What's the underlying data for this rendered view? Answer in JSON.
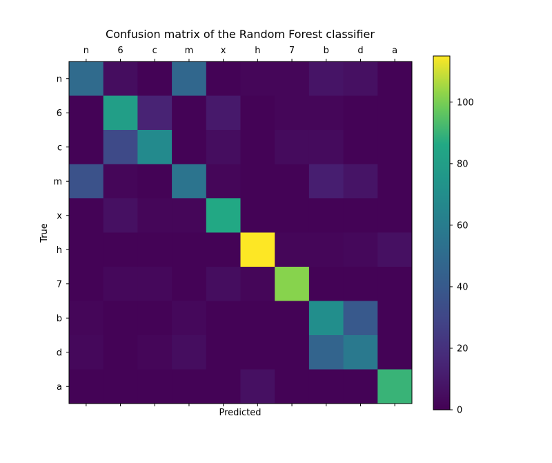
{
  "chart_data": {
    "type": "heatmap",
    "title": "Confusion matrix of the Random Forest classifier",
    "xlabel": "Predicted",
    "ylabel": "True",
    "x_categories": [
      "n",
      "6",
      "c",
      "m",
      "x",
      "h",
      "7",
      "b",
      "d",
      "a"
    ],
    "y_categories": [
      "n",
      "6",
      "c",
      "m",
      "x",
      "h",
      "7",
      "b",
      "d",
      "a"
    ],
    "values": [
      [
        50,
        5,
        1,
        48,
        1,
        2,
        2,
        8,
        6,
        1
      ],
      [
        1,
        80,
        14,
        1,
        10,
        1,
        2,
        2,
        1,
        1
      ],
      [
        1,
        32,
        68,
        1,
        5,
        1,
        4,
        4,
        1,
        1
      ],
      [
        36,
        2,
        1,
        55,
        2,
        1,
        1,
        12,
        8,
        1
      ],
      [
        1,
        6,
        2,
        2,
        86,
        1,
        1,
        1,
        1,
        1
      ],
      [
        1,
        1,
        1,
        1,
        1,
        115,
        2,
        2,
        3,
        6
      ],
      [
        1,
        3,
        3,
        1,
        5,
        2,
        102,
        1,
        1,
        1
      ],
      [
        2,
        1,
        1,
        3,
        1,
        1,
        1,
        70,
        40,
        1
      ],
      [
        3,
        1,
        2,
        5,
        1,
        1,
        1,
        46,
        58,
        1
      ],
      [
        1,
        1,
        1,
        1,
        1,
        6,
        1,
        1,
        1,
        90
      ]
    ],
    "colormap": "viridis",
    "colorbar": {
      "vmin": 0,
      "vmax": 115,
      "ticks": [
        0,
        20,
        40,
        60,
        80,
        100
      ]
    },
    "x_tick_position": "top",
    "grid": false
  }
}
